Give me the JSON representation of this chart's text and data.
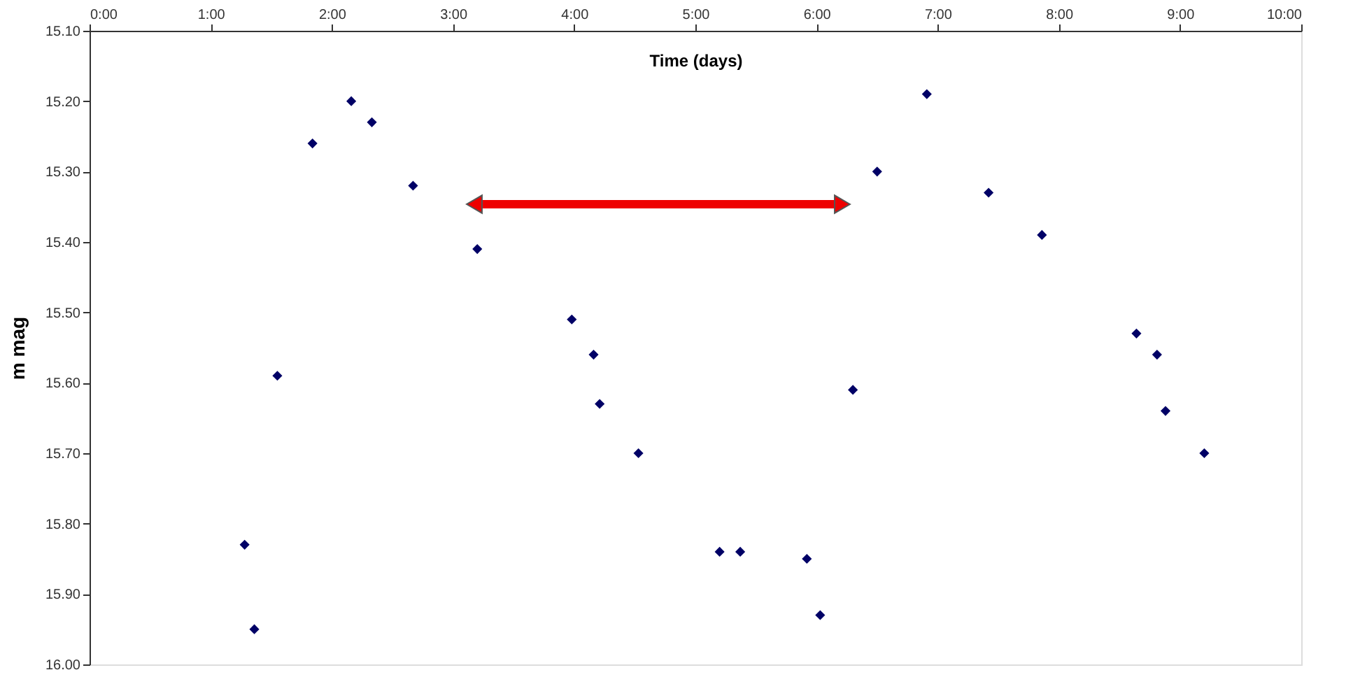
{
  "chart_data": {
    "type": "scatter",
    "xlabel": "Time (days)",
    "ylabel": "m mag",
    "x": [
      1.28,
      1.36,
      1.55,
      1.84,
      2.16,
      2.33,
      2.67,
      3.2,
      3.98,
      4.16,
      4.21,
      4.53,
      5.2,
      5.37,
      5.92,
      6.03,
      6.3,
      6.5,
      6.91,
      7.42,
      7.86,
      8.64,
      8.81,
      8.88,
      9.2
    ],
    "series": [
      {
        "color": "#000066",
        "values": [
          15.83,
          15.95,
          15.59,
          15.26,
          15.2,
          15.23,
          15.32,
          15.41,
          15.51,
          15.56,
          15.63,
          15.7,
          15.84,
          15.84,
          15.85,
          15.93,
          15.61,
          15.3,
          15.19,
          15.33,
          15.39,
          15.53,
          15.56,
          15.64,
          15.7
        ]
      }
    ],
    "xlim": [
      0,
      10
    ],
    "xticks": [
      {
        "value": 0,
        "label": "0:00"
      },
      {
        "value": 1,
        "label": "1:00"
      },
      {
        "value": 2,
        "label": "2:00"
      },
      {
        "value": 3,
        "label": "3:00"
      },
      {
        "value": 4,
        "label": "4:00"
      },
      {
        "value": 5,
        "label": "5:00"
      },
      {
        "value": 6,
        "label": "6:00"
      },
      {
        "value": 7,
        "label": "7:00"
      },
      {
        "value": 8,
        "label": "8:00"
      },
      {
        "value": 9,
        "label": "9:00"
      },
      {
        "value": 10,
        "label": "10:00"
      }
    ],
    "ylim": [
      16.0,
      15.1
    ],
    "yticks": [
      {
        "value": 15.1,
        "label": "15.10"
      },
      {
        "value": 15.2,
        "label": "15.20"
      },
      {
        "value": 15.3,
        "label": "15.30"
      },
      {
        "value": 15.4,
        "label": "15.40"
      },
      {
        "value": 15.5,
        "label": "15.50"
      },
      {
        "value": 15.6,
        "label": "15.60"
      },
      {
        "value": 15.7,
        "label": "15.70"
      },
      {
        "value": 15.8,
        "label": "15.80"
      },
      {
        "value": 15.9,
        "label": "15.90"
      },
      {
        "value": 16.0,
        "label": "16.00"
      }
    ],
    "marker": "diamond",
    "grid": false,
    "legend": false
  }
}
